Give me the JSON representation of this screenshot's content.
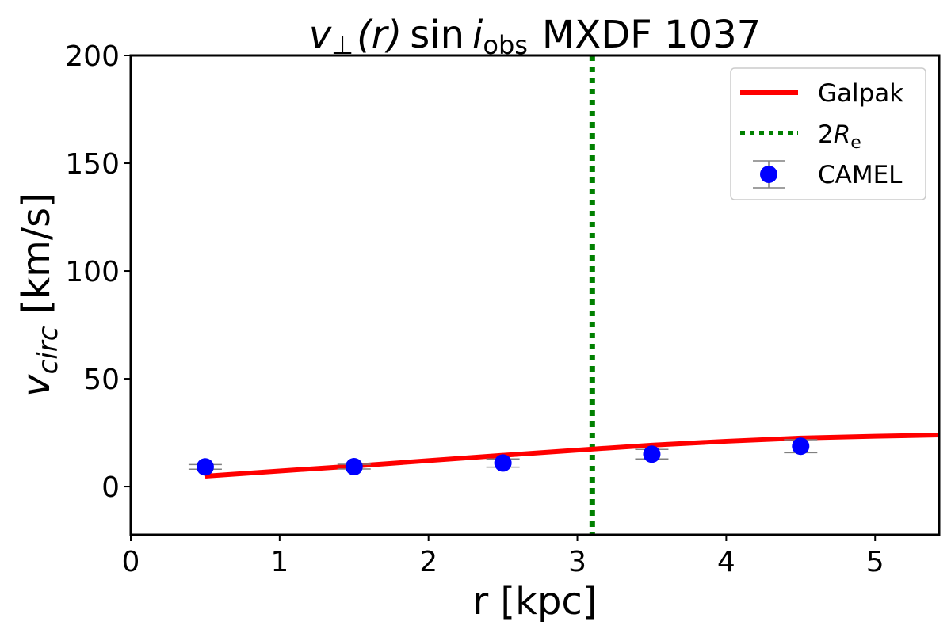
{
  "chart_data": {
    "type": "line",
    "title": "v⊥(r) sin i_obs MXDF 1037",
    "title_parts": {
      "v": "v",
      "perp": "⊥",
      "r": "(r)",
      "sin": "sin",
      "i": "i",
      "obs": "obs",
      "name": "MXDF 1037"
    },
    "xlabel": "r [kpc]",
    "ylabel_parts": {
      "v": "v",
      "sub": "circ",
      "unit": " [km/s]"
    },
    "xlim": [
      0,
      5.43
    ],
    "ylim": [
      -22.4,
      200
    ],
    "xticks": [
      0,
      1,
      2,
      3,
      4,
      5
    ],
    "yticks": [
      0,
      50,
      100,
      150,
      200
    ],
    "grid": false,
    "legend_placement": "top-right",
    "legend": [
      {
        "label": "Galpak",
        "style": "solid",
        "color": "#ff0000"
      },
      {
        "label_main": "2",
        "label_R": "R",
        "label_sub": "e",
        "style": "dotted",
        "color": "#008000"
      },
      {
        "label": "CAMEL",
        "style": "marker-errorbar",
        "color": "#0000ff"
      }
    ],
    "series": [
      {
        "name": "Galpak",
        "color": "#ff0000",
        "x": [
          0.5,
          1.0,
          1.5,
          2.0,
          2.5,
          3.0,
          3.5,
          4.0,
          4.5,
          5.0,
          5.43
        ],
        "y": [
          4.8,
          7.2,
          9.5,
          12.0,
          14.5,
          16.9,
          19.2,
          21.0,
          22.5,
          23.3,
          23.9
        ]
      },
      {
        "name": "CAMEL",
        "color": "#0000ff",
        "errorbar_color": "#808080",
        "x": [
          0.5,
          1.5,
          2.5,
          3.5,
          4.5
        ],
        "y": [
          9.1,
          9.2,
          10.9,
          15.0,
          18.7
        ],
        "yerr": [
          1.1,
          1.1,
          1.9,
          2.2,
          3.0
        ]
      }
    ],
    "vlines": [
      {
        "name": "2Re",
        "x": 3.1,
        "color": "#008000",
        "style": "dotted"
      }
    ]
  }
}
